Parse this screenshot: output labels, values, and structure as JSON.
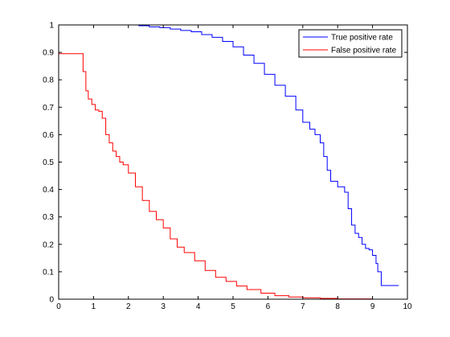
{
  "chart_data": {
    "type": "line",
    "title": "",
    "xlabel": "",
    "ylabel": "",
    "xlim": [
      0,
      10
    ],
    "ylim": [
      0,
      1
    ],
    "grid": false,
    "legend_placement": "top-right",
    "x_ticks": [
      "0",
      "1",
      "2",
      "3",
      "4",
      "5",
      "6",
      "7",
      "8",
      "9",
      "10"
    ],
    "y_ticks": [
      "0",
      "0.1",
      "0.2",
      "0.3",
      "0.4",
      "0.5",
      "0.6",
      "0.7",
      "0.8",
      "0.9",
      "1"
    ],
    "series": [
      {
        "name": "True positive rate",
        "color": "#0000ff",
        "x": [
          1.75,
          2.0,
          2.3,
          2.6,
          2.9,
          3.2,
          3.5,
          3.8,
          4.1,
          4.4,
          4.7,
          5.0,
          5.3,
          5.6,
          5.9,
          6.2,
          6.5,
          6.8,
          7.0,
          7.2,
          7.35,
          7.5,
          7.6,
          7.7,
          7.8,
          8.0,
          8.2,
          8.3,
          8.4,
          8.5,
          8.6,
          8.7,
          8.8,
          8.9,
          9.0,
          9.1,
          9.15,
          9.25,
          9.75
        ],
        "y": [
          1.0,
          1.0,
          0.997,
          0.993,
          0.99,
          0.985,
          0.98,
          0.975,
          0.965,
          0.955,
          0.94,
          0.92,
          0.89,
          0.86,
          0.82,
          0.78,
          0.74,
          0.69,
          0.645,
          0.62,
          0.6,
          0.57,
          0.52,
          0.47,
          0.43,
          0.41,
          0.39,
          0.33,
          0.27,
          0.24,
          0.225,
          0.2,
          0.185,
          0.18,
          0.16,
          0.13,
          0.1,
          0.05,
          0.05
        ]
      },
      {
        "name": "False positive rate",
        "color": "#ff0000",
        "x": [
          0.0,
          0.65,
          0.7,
          0.78,
          0.85,
          0.95,
          1.05,
          1.15,
          1.25,
          1.35,
          1.45,
          1.55,
          1.65,
          1.75,
          1.85,
          2.0,
          2.2,
          2.4,
          2.6,
          2.8,
          3.0,
          3.2,
          3.4,
          3.6,
          3.9,
          4.2,
          4.5,
          4.8,
          5.1,
          5.4,
          5.8,
          6.2,
          6.6,
          7.0,
          7.5,
          8.0,
          9.0
        ],
        "y": [
          0.895,
          0.895,
          0.83,
          0.76,
          0.73,
          0.71,
          0.69,
          0.685,
          0.66,
          0.6,
          0.57,
          0.54,
          0.52,
          0.5,
          0.49,
          0.46,
          0.41,
          0.36,
          0.32,
          0.29,
          0.26,
          0.22,
          0.19,
          0.17,
          0.14,
          0.105,
          0.08,
          0.065,
          0.048,
          0.035,
          0.022,
          0.013,
          0.008,
          0.005,
          0.003,
          0.001,
          0.0
        ]
      }
    ]
  }
}
